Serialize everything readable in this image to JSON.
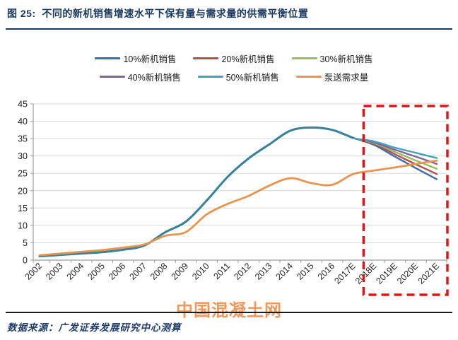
{
  "header": {
    "title": "图 25:  不同的新机销售增速水平下保有量与需求量的供需平衡位置"
  },
  "chart_data": {
    "type": "line",
    "title": "不同的新机销售增速水平下保有量与需求量的供需平衡位置",
    "xlabel": "",
    "ylabel": "",
    "ylim": [
      0,
      45
    ],
    "ytick_step": 5,
    "grid": true,
    "legend_position": "top",
    "smooth_lines": true,
    "categories": [
      "2002",
      "2003",
      "2004",
      "2005",
      "2006",
      "2007",
      "2008",
      "2009",
      "2010",
      "2011",
      "2012",
      "2013",
      "2014",
      "2015",
      "2016",
      "2017E",
      "2018E",
      "2019E",
      "2020E",
      "2021E"
    ],
    "series": [
      {
        "name": "10%新机销售",
        "color": "#3E6FA5",
        "values": [
          1.1,
          1.5,
          1.9,
          2.3,
          3.0,
          4.2,
          8.0,
          11.1,
          17.2,
          24.0,
          29.3,
          33.4,
          37.3,
          38.2,
          37.5,
          35.2,
          33.2,
          29.8,
          26.5,
          23.3
        ]
      },
      {
        "name": "20%新机销售",
        "color": "#B2504B",
        "values": [
          1.1,
          1.5,
          1.9,
          2.3,
          3.0,
          4.2,
          8.0,
          11.1,
          17.2,
          24.0,
          29.3,
          33.4,
          37.3,
          38.2,
          37.5,
          35.2,
          33.5,
          30.5,
          27.6,
          24.8
        ]
      },
      {
        "name": "30%新机销售",
        "color": "#9BBB59",
        "values": [
          1.1,
          1.5,
          1.9,
          2.3,
          3.0,
          4.2,
          8.0,
          11.1,
          17.2,
          24.0,
          29.3,
          33.4,
          37.3,
          38.2,
          37.5,
          35.2,
          33.7,
          31.2,
          28.7,
          26.3
        ]
      },
      {
        "name": "40%新机销售",
        "color": "#7F62A1",
        "values": [
          1.1,
          1.5,
          1.9,
          2.3,
          3.0,
          4.2,
          8.0,
          11.1,
          17.2,
          24.0,
          29.3,
          33.4,
          37.3,
          38.2,
          37.5,
          35.2,
          33.9,
          31.8,
          29.8,
          27.7
        ]
      },
      {
        "name": "50%新机销售",
        "color": "#45A0BE",
        "values": [
          1.1,
          1.5,
          1.9,
          2.3,
          3.0,
          4.2,
          8.0,
          11.1,
          17.2,
          24.0,
          29.3,
          33.4,
          37.3,
          38.2,
          37.5,
          35.2,
          34.2,
          32.4,
          30.9,
          29.4
        ]
      },
      {
        "name": "泵送需求量",
        "color": "#E8944E",
        "values": [
          1.4,
          1.9,
          2.4,
          2.9,
          3.6,
          4.5,
          7.0,
          8.1,
          13.2,
          16.2,
          18.5,
          21.5,
          23.6,
          22.2,
          21.7,
          24.8,
          25.8,
          26.7,
          27.7,
          28.7
        ]
      }
    ],
    "overlay": {
      "note": "ownership series coincide 2002-2017E and are drawn as one teal curve",
      "color": "#35829B",
      "last_shared_index": 15
    },
    "annotations": {
      "highlight_box": {
        "from": "2018E",
        "to": "2021E",
        "style": "red-dashed",
        "color": "#E01310"
      }
    }
  },
  "watermark": {
    "text": "中国混凝土网",
    "color": "#F2975A"
  },
  "footer": {
    "source": "数据来源：广发证券发展研究中心测算"
  }
}
